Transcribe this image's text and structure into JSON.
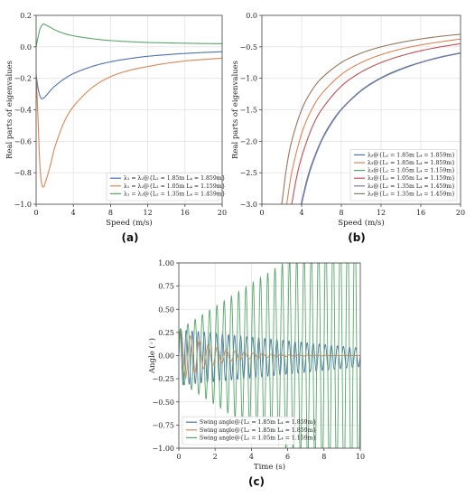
{
  "panels": {
    "a": "(a)",
    "b": "(b)",
    "c": "(c)"
  },
  "chart_data": [
    {
      "type": "line",
      "xlabel": "Speed (m/s)",
      "ylabel": "Real parts of eigenvalues",
      "xlim": [
        0,
        20
      ],
      "ylim": [
        -1.0,
        0.2
      ],
      "xticks": [
        0,
        4,
        8,
        12,
        16,
        20
      ],
      "yticks": [
        0.2,
        0.0,
        -0.2,
        -0.4,
        -0.6,
        -0.8,
        -1.0
      ],
      "ytick_labels": [
        "0.2",
        "0.0",
        "−0.2",
        "−0.4",
        "−0.6",
        "−0.8",
        "−1.0"
      ],
      "grid": true,
      "legend_position": "lower-right",
      "series": [
        {
          "name": "λ₁ = λ₂@{L₂ = 1.85m   L₄ = 1.859m}",
          "color": "#4c72b0",
          "x": [
            0,
            0.2,
            0.4,
            0.6,
            0.8,
            1.0,
            1.5,
            2,
            3,
            4,
            6,
            8,
            10,
            12,
            14,
            16,
            18,
            20
          ],
          "y": [
            -0.18,
            -0.26,
            -0.31,
            -0.33,
            -0.325,
            -0.315,
            -0.28,
            -0.25,
            -0.205,
            -0.17,
            -0.125,
            -0.095,
            -0.075,
            -0.06,
            -0.05,
            -0.042,
            -0.036,
            -0.031
          ]
        },
        {
          "name": "λ₁ = λ₂@{L₂ = 1.05m   L₄ = 1.159m}",
          "color": "#dd8452",
          "x": [
            0,
            0.2,
            0.4,
            0.6,
            0.8,
            1.0,
            1.5,
            2,
            3,
            4,
            6,
            8,
            10,
            12,
            14,
            16,
            18,
            20
          ],
          "y": [
            -0.17,
            -0.45,
            -0.75,
            -0.87,
            -0.89,
            -0.86,
            -0.76,
            -0.64,
            -0.48,
            -0.38,
            -0.26,
            -0.19,
            -0.15,
            -0.125,
            -0.105,
            -0.09,
            -0.08,
            -0.072
          ]
        },
        {
          "name": "λ₁ = λ₂@{L₂ = 1.35m   L₄ = 1.459m}",
          "color": "#55a868",
          "x": [
            0,
            0.2,
            0.4,
            0.6,
            0.8,
            1.0,
            1.5,
            2,
            3,
            4,
            6,
            8,
            10,
            12,
            14,
            16,
            18,
            20
          ],
          "y": [
            0.0,
            0.06,
            0.11,
            0.135,
            0.145,
            0.14,
            0.125,
            0.108,
            0.085,
            0.07,
            0.052,
            0.04,
            0.033,
            0.028,
            0.025,
            0.023,
            0.021,
            0.02
          ]
        }
      ]
    },
    {
      "type": "line",
      "xlabel": "Speed (m/s)",
      "ylabel": "Real parts of eigenvalues",
      "xlim": [
        0,
        20
      ],
      "ylim": [
        -3.0,
        0.0
      ],
      "xticks": [
        0,
        4,
        8,
        12,
        16,
        20
      ],
      "yticks": [
        0.0,
        -0.5,
        -1.0,
        -1.5,
        -2.0,
        -2.5,
        -3.0
      ],
      "ytick_labels": [
        "0.0",
        "−0.5",
        "−1.0",
        "−1.5",
        "−2.0",
        "−2.5",
        "−3.0"
      ],
      "grid": true,
      "legend_position": "lower-right",
      "series": [
        {
          "name": "λ₃@{L₂ = 1.85m   L₄ = 1.859m}",
          "color": "#4c72b0",
          "x": [
            3.95,
            4.5,
            5,
            6,
            7,
            8,
            10,
            12,
            14,
            16,
            18,
            20
          ],
          "y": [
            -3.0,
            -2.63,
            -2.37,
            -1.98,
            -1.7,
            -1.49,
            -1.19,
            -0.99,
            -0.85,
            -0.745,
            -0.66,
            -0.595
          ]
        },
        {
          "name": "λ₃@{L₂ = 1.85m   L₄ = 1.859m}",
          "color": "#dd8452",
          "x": [
            2.5,
            3,
            4,
            5,
            6,
            8,
            10,
            12,
            14,
            16,
            18,
            20
          ],
          "y": [
            -3.0,
            -2.5,
            -1.88,
            -1.5,
            -1.25,
            -0.94,
            -0.75,
            -0.625,
            -0.535,
            -0.47,
            -0.42,
            -0.375
          ]
        },
        {
          "name": "λ₃@{L₂ = 1.05m   L₄ = 1.159m}",
          "color": "#55a868",
          "x": [
            4.0,
            4.5,
            5,
            6,
            7,
            8,
            10,
            12,
            14,
            16,
            18,
            20
          ],
          "y": [
            -3.0,
            -2.67,
            -2.4,
            -2.0,
            -1.72,
            -1.5,
            -1.2,
            -1.0,
            -0.86,
            -0.75,
            -0.667,
            -0.6
          ]
        },
        {
          "name": "λ₃@{L₂ = 1.05m   L₄ = 1.159m}",
          "color": "#c44e52",
          "x": [
            3.0,
            3.5,
            4,
            5,
            6,
            8,
            10,
            12,
            14,
            16,
            18,
            20
          ],
          "y": [
            -3.0,
            -2.57,
            -2.25,
            -1.8,
            -1.5,
            -1.125,
            -0.9,
            -0.75,
            -0.643,
            -0.5625,
            -0.5,
            -0.45
          ]
        },
        {
          "name": "λ₃@{L₂ = 1.35m   L₄ = 1.459m}",
          "color": "#8172b2",
          "x": [
            3.98,
            4.5,
            5,
            6,
            7,
            8,
            10,
            12,
            14,
            16,
            18,
            20
          ],
          "y": [
            -3.0,
            -2.65,
            -2.39,
            -1.99,
            -1.71,
            -1.495,
            -1.195,
            -0.995,
            -0.855,
            -0.748,
            -0.664,
            -0.598
          ]
        },
        {
          "name": "λ₃@{L₂ = 1.35m   L₄ = 1.459m}",
          "color": "#937860",
          "x": [
            2.0,
            2.5,
            3,
            4,
            5,
            6,
            8,
            10,
            12,
            14,
            16,
            18,
            20
          ],
          "y": [
            -3.0,
            -2.4,
            -2.0,
            -1.5,
            -1.2,
            -1.0,
            -0.75,
            -0.6,
            -0.5,
            -0.43,
            -0.375,
            -0.333,
            -0.3
          ]
        }
      ]
    },
    {
      "type": "line",
      "xlabel": "Time (s)",
      "ylabel": "Angle (◦)",
      "xlim": [
        0,
        10
      ],
      "ylim": [
        -1.0,
        1.0
      ],
      "xticks": [
        0,
        2,
        4,
        6,
        8,
        10
      ],
      "yticks": [
        1.0,
        0.75,
        0.5,
        0.25,
        0.0,
        -0.25,
        -0.5,
        -0.75,
        -1.0
      ],
      "ytick_labels": [
        "1.00",
        "0.75",
        "0.50",
        "0.25",
        "0.00",
        "−0.25",
        "−0.50",
        "−0.75",
        "−1.00"
      ],
      "grid": true,
      "legend_position": "lower-left",
      "series": [
        {
          "name": "Swing angle@{L₂ = 1.85m   L₄ = 1.859m}",
          "color": "#4c72b0",
          "signal": {
            "frequency_hz": 3.0,
            "start_amplitude": 0.3,
            "amplitude_change_per_s": -0.02,
            "offset": -0.02,
            "phase": 0.2
          }
        },
        {
          "name": "Swing angle@{L₂ = 1.85m   L₄ = 1.859m}",
          "color": "#dd8452",
          "signal": {
            "frequency_hz": 2.0,
            "start_amplitude": 0.3,
            "decay_per_s": 0.55,
            "offset": 0.0,
            "phase": 0.0
          }
        },
        {
          "name": "Swing angle@{L₂ = 1.05m   L₄ = 1.159m}",
          "color": "#55a868",
          "signal": {
            "frequency_hz": 2.5,
            "start_amplitude": 0.28,
            "growth_per_s": 0.125,
            "offset": 0.0,
            "phase": 0.0
          }
        }
      ]
    }
  ]
}
